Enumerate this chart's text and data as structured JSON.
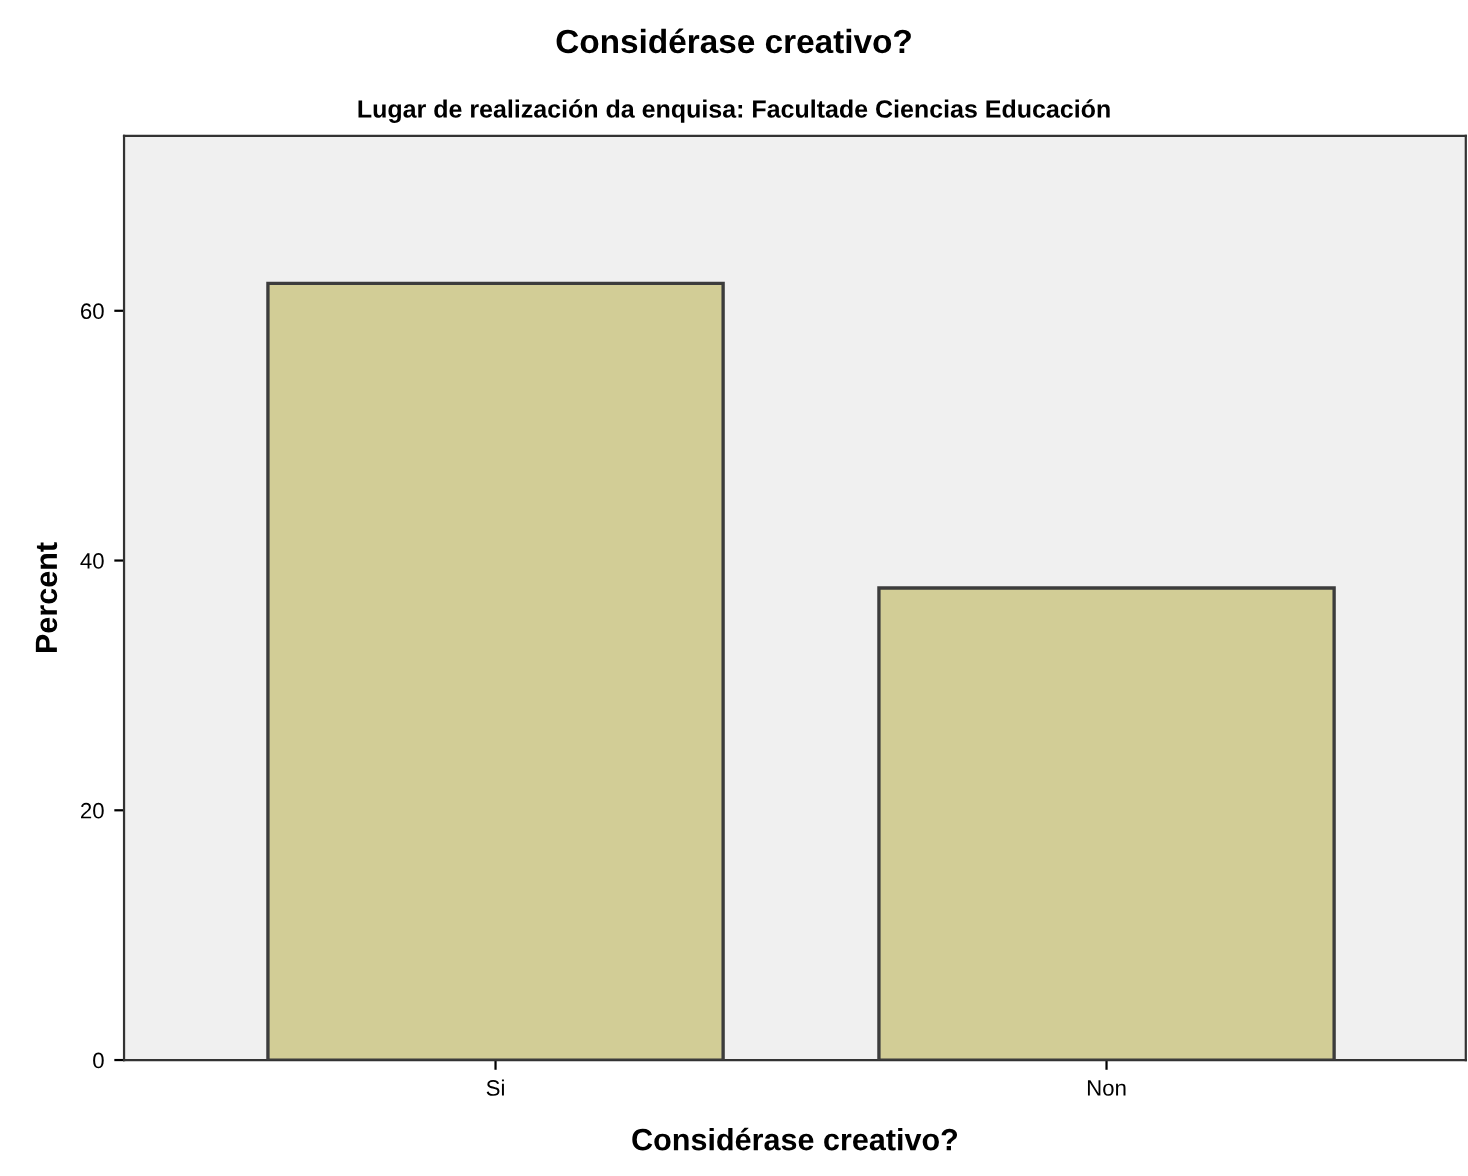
{
  "chart_data": {
    "type": "bar",
    "title": "Considérase creativo?",
    "subtitle": "Lugar de realización da enquisa: Facultade Ciencias Educación",
    "xlabel": "Considérase creativo?",
    "ylabel": "Percent",
    "categories": [
      "Si",
      "Non"
    ],
    "values": [
      62.2,
      37.8
    ],
    "color": "#d2cd96",
    "ylim": [
      0,
      74
    ],
    "yticks": [
      0,
      20,
      40,
      60
    ],
    "grid": false,
    "legend": false
  }
}
